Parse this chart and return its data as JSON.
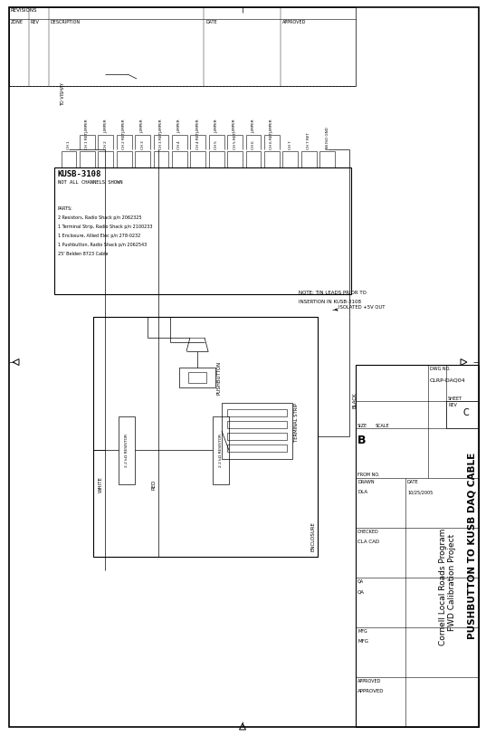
{
  "title": "PUSHBUTTON TO KUSB DAQ CABLE",
  "subtitle1": "FWD Calibration Project",
  "subtitle2": "Cornell Local Roads Program",
  "dwg_no": "CLRP-DAQ04",
  "size": "B",
  "rev": "C",
  "date": "10/25/2005",
  "drawn_label": "DRAWN",
  "drawn_val": "DLA",
  "checked_label": "CHECKED",
  "checked_val": "CLA CAD",
  "qa_label": "QA",
  "qa_val": "QA",
  "mfg_label": "MFG",
  "mfg_val": "MFG",
  "approved_label": "APPROVED",
  "approved_val": "APPROVED",
  "kusb_label": "KUSB-3108",
  "kusb_note": "NOT ALL CHANNELS SHOWN",
  "to_vishay": "TO VISHAY",
  "pushbutton_label": "PUSHBUTTON",
  "terminal_strip": "TERMINAL STRIP",
  "enclosure": "ENCLOSURE",
  "resistor1": "2.2 kΩ RESISTOR",
  "resistor2": "2.2 kΩ RESISTOR",
  "wire_white": "WHITE",
  "wire_red": "RED",
  "wire_black": "BLACK",
  "note_line1": "NOTE: TIN LEADS PRIOR TO",
  "note_line2": "INSERTION IN KUSB-3108",
  "isolated": "ISOLATED +5V OUT",
  "parts_lines": [
    "PARTS:",
    "2 Resistors, Radio Shack p/n 2062325",
    "1 Terminal Strip, Radio Shack p/n 2100233",
    "1 Enclosure, Allied Elec p/n 278-0232",
    "1 Pushbutton, Radio Shack p/n 2062543",
    "25' Belden 8723 Cable"
  ],
  "channels": [
    "CH 1",
    "CH 1 RET",
    "CH 2",
    "CH 2 RET",
    "CH 3",
    "CH 3 RET",
    "CH 4",
    "CH 4 RET",
    "CH 5",
    "CH 5 RET",
    "CH 6",
    "CH 6 RET",
    "CH 7",
    "CH 7 RET",
    "AN ISO GND"
  ],
  "jumper_indices": [
    1,
    2,
    3,
    4,
    5,
    6,
    7,
    8,
    9,
    10,
    11
  ],
  "bg_color": "#ffffff",
  "lc": "#000000"
}
